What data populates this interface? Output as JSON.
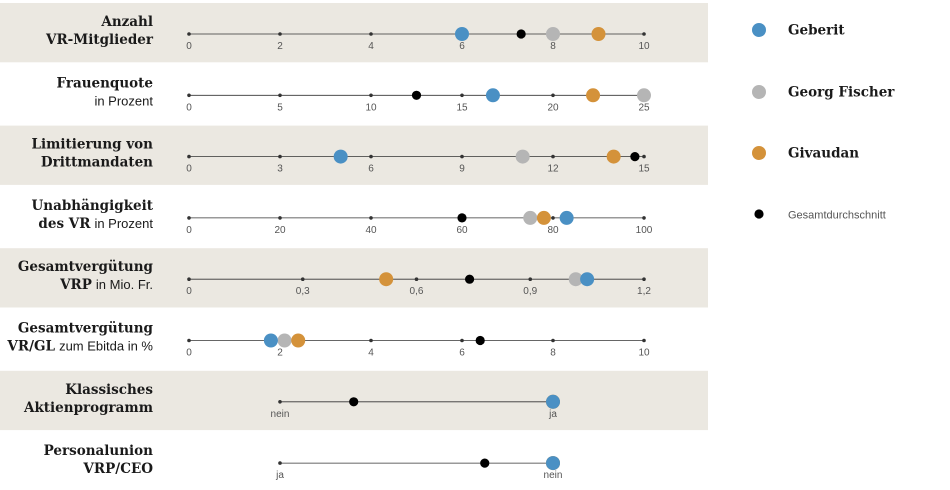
{
  "chart_data": {
    "type": "scatter",
    "colors": {
      "band": "#ebe8e1",
      "axis": "#333333",
      "Geberit": "#4a90c4",
      "Georg Fischer": "#b5b5b5",
      "Givaudan": "#d4923a",
      "Gesamtdurchschnitt": "#000000"
    },
    "legend": [
      {
        "key": "Geberit",
        "label": "Geberit"
      },
      {
        "key": "Georg Fischer",
        "label": "Georg Fischer"
      },
      {
        "key": "Givaudan",
        "label": "Givaudan"
      },
      {
        "key": "Gesamtdurchschnitt",
        "label": "Gesamtdurchschnitt"
      }
    ],
    "rows": [
      {
        "label_bold1": "Anzahl",
        "label_reg1": "",
        "label_bold2": "VR-Mitglieder",
        "label_reg2": "",
        "categorical": false,
        "min": 0,
        "max": 10,
        "ticks": [
          "0",
          "2",
          "4",
          "6",
          "8",
          "10"
        ],
        "tick_values": [
          0,
          2,
          4,
          6,
          8,
          10
        ],
        "values": {
          "Geberit": 6,
          "Georg Fischer": 8,
          "Givaudan": 9,
          "Gesamtdurchschnitt": 7.3
        }
      },
      {
        "label_bold1": "Frauenquote",
        "label_reg1": "",
        "label_bold2": "",
        "label_reg2": "in Prozent",
        "categorical": false,
        "min": 0,
        "max": 25,
        "ticks": [
          "0",
          "5",
          "10",
          "15",
          "20",
          "25"
        ],
        "tick_values": [
          0,
          5,
          10,
          15,
          20,
          25
        ],
        "values": {
          "Geberit": 16.7,
          "Georg Fischer": 25,
          "Givaudan": 22.2,
          "Gesamtdurchschnitt": 12.5
        }
      },
      {
        "label_bold1": "Limitierung von",
        "label_reg1": "",
        "label_bold2": "Drittmandaten",
        "label_reg2": "",
        "categorical": false,
        "min": 0,
        "max": 15,
        "ticks": [
          "0",
          "3",
          "6",
          "9",
          "12",
          "15"
        ],
        "tick_values": [
          0,
          3,
          6,
          9,
          12,
          15
        ],
        "values": {
          "Geberit": 5,
          "Georg Fischer": 11,
          "Givaudan": 14,
          "Gesamtdurchschnitt": 14.7
        }
      },
      {
        "label_bold1": "Unabhängigkeit",
        "label_reg1": "",
        "label_bold2": "des VR",
        "label_reg2": "in Prozent",
        "categorical": false,
        "min": 0,
        "max": 100,
        "ticks": [
          "0",
          "20",
          "40",
          "60",
          "80",
          "100"
        ],
        "tick_values": [
          0,
          20,
          40,
          60,
          80,
          100
        ],
        "values": {
          "Geberit": 83,
          "Georg Fischer": 75,
          "Givaudan": 78,
          "Gesamtdurchschnitt": 60
        }
      },
      {
        "label_bold1": "Gesamtvergütung",
        "label_reg1": "",
        "label_bold2": "VRP",
        "label_reg2": "in Mio. Fr.",
        "categorical": false,
        "min": 0,
        "max": 1.2,
        "ticks": [
          "0",
          "0,3",
          "0,6",
          "0,9",
          "1,2"
        ],
        "tick_values": [
          0,
          0.3,
          0.6,
          0.9,
          1.2
        ],
        "values": {
          "Geberit": 1.05,
          "Georg Fischer": 1.02,
          "Givaudan": 0.52,
          "Gesamtdurchschnitt": 0.74
        }
      },
      {
        "label_bold1": "Gesamtvergütung",
        "label_reg1": "",
        "label_bold2": "VR/GL",
        "label_reg2": "zum Ebitda in %",
        "categorical": false,
        "min": 0,
        "max": 10,
        "ticks": [
          "0",
          "2",
          "4",
          "6",
          "8",
          "10"
        ],
        "tick_values": [
          0,
          2,
          4,
          6,
          8,
          10
        ],
        "values": {
          "Geberit": 1.8,
          "Georg Fischer": 2.1,
          "Givaudan": 2.4,
          "Gesamtdurchschnitt": 6.4
        }
      },
      {
        "label_bold1": "Klassisches",
        "label_reg1": "",
        "label_bold2": "Aktienprogramm",
        "label_reg2": "",
        "categorical": true,
        "min": 0,
        "max": 1,
        "ticks": [
          "nein",
          "ja"
        ],
        "tick_values": [
          0,
          1
        ],
        "values": {
          "Geberit": 1,
          "Georg Fischer": 1,
          "Givaudan": 1,
          "Gesamtdurchschnitt": 0.27
        }
      },
      {
        "label_bold1": "Personalunion",
        "label_reg1": "",
        "label_bold2": "VRP/CEO",
        "label_reg2": "",
        "categorical": true,
        "min": 0,
        "max": 1,
        "ticks": [
          "ja",
          "nein"
        ],
        "tick_values": [
          0,
          1
        ],
        "values": {
          "Geberit": 1,
          "Georg Fischer": 1,
          "Givaudan": 1,
          "Gesamtdurchschnitt": 0.75
        }
      }
    ]
  }
}
